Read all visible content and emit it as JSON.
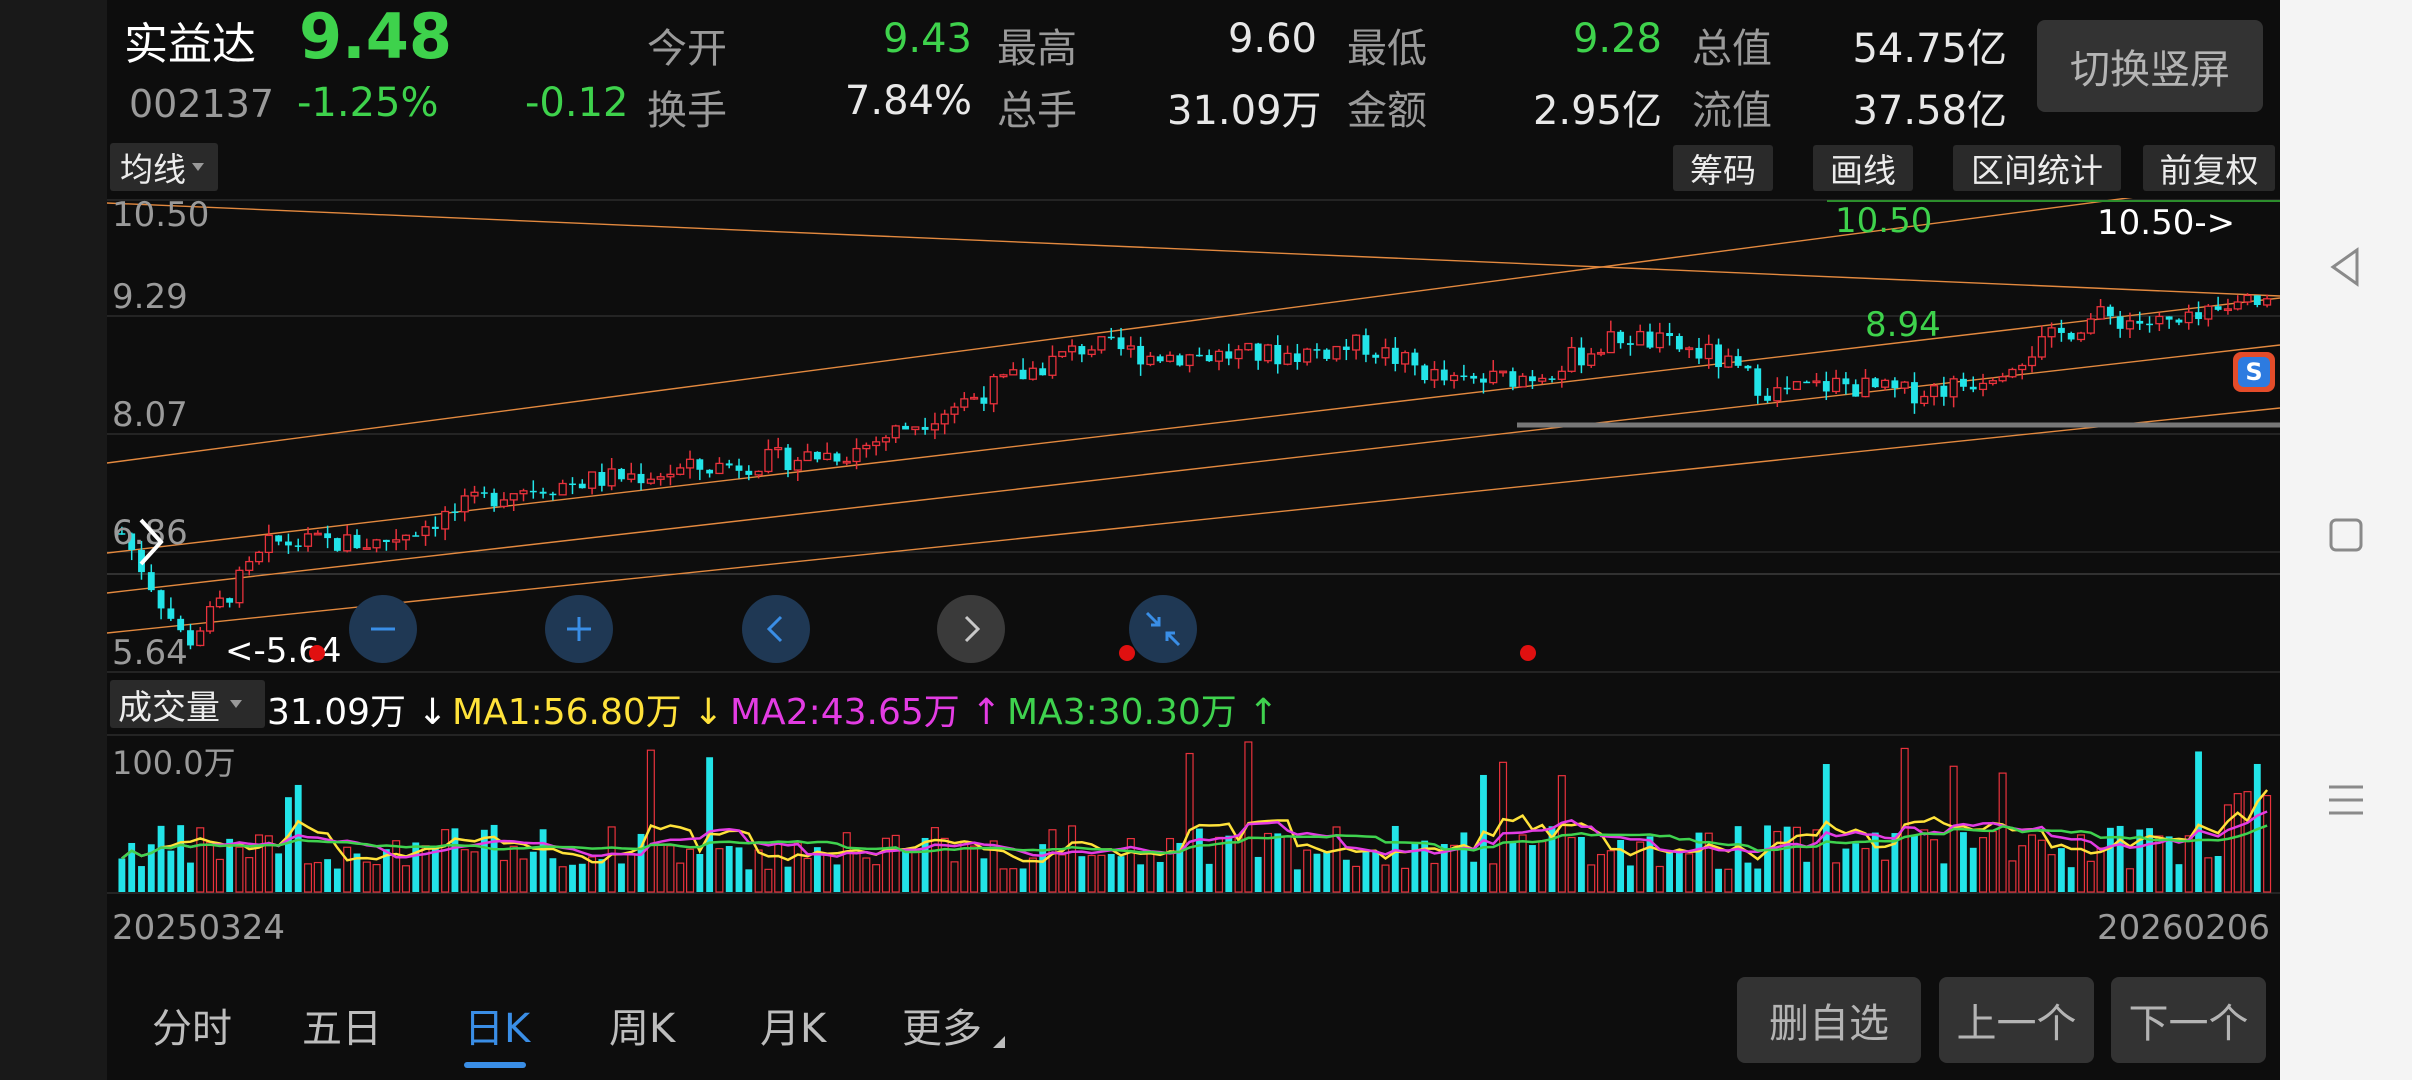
{
  "stock": {
    "name": "实益达",
    "code": "002137",
    "price": "9.48",
    "change_pct": "-1.25%",
    "change": "-0.12"
  },
  "quote": {
    "open": {
      "label": "今开",
      "value": "9.43"
    },
    "high": {
      "label": "最高",
      "value": "9.60"
    },
    "low": {
      "label": "最低",
      "value": "9.28"
    },
    "total_value": {
      "label": "总值",
      "value": "54.75亿"
    },
    "turnover": {
      "label": "换手",
      "value": "7.84%"
    },
    "volume": {
      "label": "总手",
      "value": "31.09万"
    },
    "amount": {
      "label": "金额",
      "value": "2.95亿"
    },
    "float_value": {
      "label": "流值",
      "value": "37.58亿"
    }
  },
  "switch_label": "切换竖屏",
  "toolbar": {
    "ma_dropdown": "均线",
    "chips": "筹码",
    "draw": "画线",
    "range_stats": "区间统计",
    "adjust": "前复权"
  },
  "price_axis": [
    "10.50",
    "9.29",
    "8.07",
    "6.86",
    "5.64"
  ],
  "price_markers": {
    "high": "10.50",
    "high_arrow": "10.50->",
    "low_arrow": "<-5.64",
    "level": "8.94"
  },
  "volume_panel": {
    "dropdown": "成交量",
    "current": "31.09万",
    "current_arrow": "↓",
    "ma1": "MA1:56.80万",
    "ma1_arrow": "↓",
    "ma2": "MA2:43.65万",
    "ma2_arrow": "↑",
    "ma3": "MA3:30.30万",
    "ma3_arrow": "↑",
    "axis_max": "100.0万"
  },
  "dates": {
    "start": "20250324",
    "end": "20260206"
  },
  "tabs": [
    "分时",
    "五日",
    "日K",
    "周K",
    "月K",
    "更多"
  ],
  "active_tab": "日K",
  "actions": {
    "remove": "删自选",
    "prev": "上一个",
    "next": "下一个"
  },
  "colors": {
    "up": "#e8323c",
    "down": "#22e4e8",
    "accent": "#3a8ee6",
    "ma1": "#ffe23a",
    "ma2": "#e33ce3",
    "ma3": "#3fd24e",
    "trend": "#e3893f"
  },
  "icons": [
    "zoom-out-icon",
    "zoom-in-icon",
    "pan-left-icon",
    "pan-right-icon",
    "reset-zoom-icon",
    "expand-arrow-icon",
    "back-icon",
    "home-icon",
    "menu-icon"
  ],
  "chart_data": {
    "type": "candlestick",
    "x_range": [
      "20250324",
      "20260206"
    ],
    "ylim": [
      5.64,
      10.5
    ],
    "y_ticks": [
      10.5,
      9.29,
      8.07,
      6.86,
      5.64
    ],
    "series": [
      {
        "name": "price",
        "values": [
          [
            0,
            7.05
          ],
          [
            0.03,
            5.9
          ],
          [
            0.07,
            6.95
          ],
          [
            0.12,
            6.95
          ],
          [
            0.18,
            7.5
          ],
          [
            0.26,
            7.7
          ],
          [
            0.34,
            7.9
          ],
          [
            0.4,
            8.5
          ],
          [
            0.45,
            9.0
          ],
          [
            0.48,
            8.9
          ],
          [
            0.54,
            8.9
          ],
          [
            0.58,
            9.0
          ],
          [
            0.62,
            8.6
          ],
          [
            0.66,
            8.7
          ],
          [
            0.7,
            9.1
          ],
          [
            0.74,
            8.9
          ],
          [
            0.77,
            8.5
          ],
          [
            0.8,
            8.6
          ],
          [
            0.83,
            8.5
          ],
          [
            0.86,
            8.6
          ],
          [
            0.92,
            9.3
          ],
          [
            0.96,
            9.2
          ],
          [
            1.0,
            9.48
          ]
        ]
      }
    ],
    "volume_axis_max": "100.0万",
    "volume_ma": {
      "MA1": "56.80万",
      "MA2": "43.65万",
      "MA3": "30.30万"
    }
  }
}
